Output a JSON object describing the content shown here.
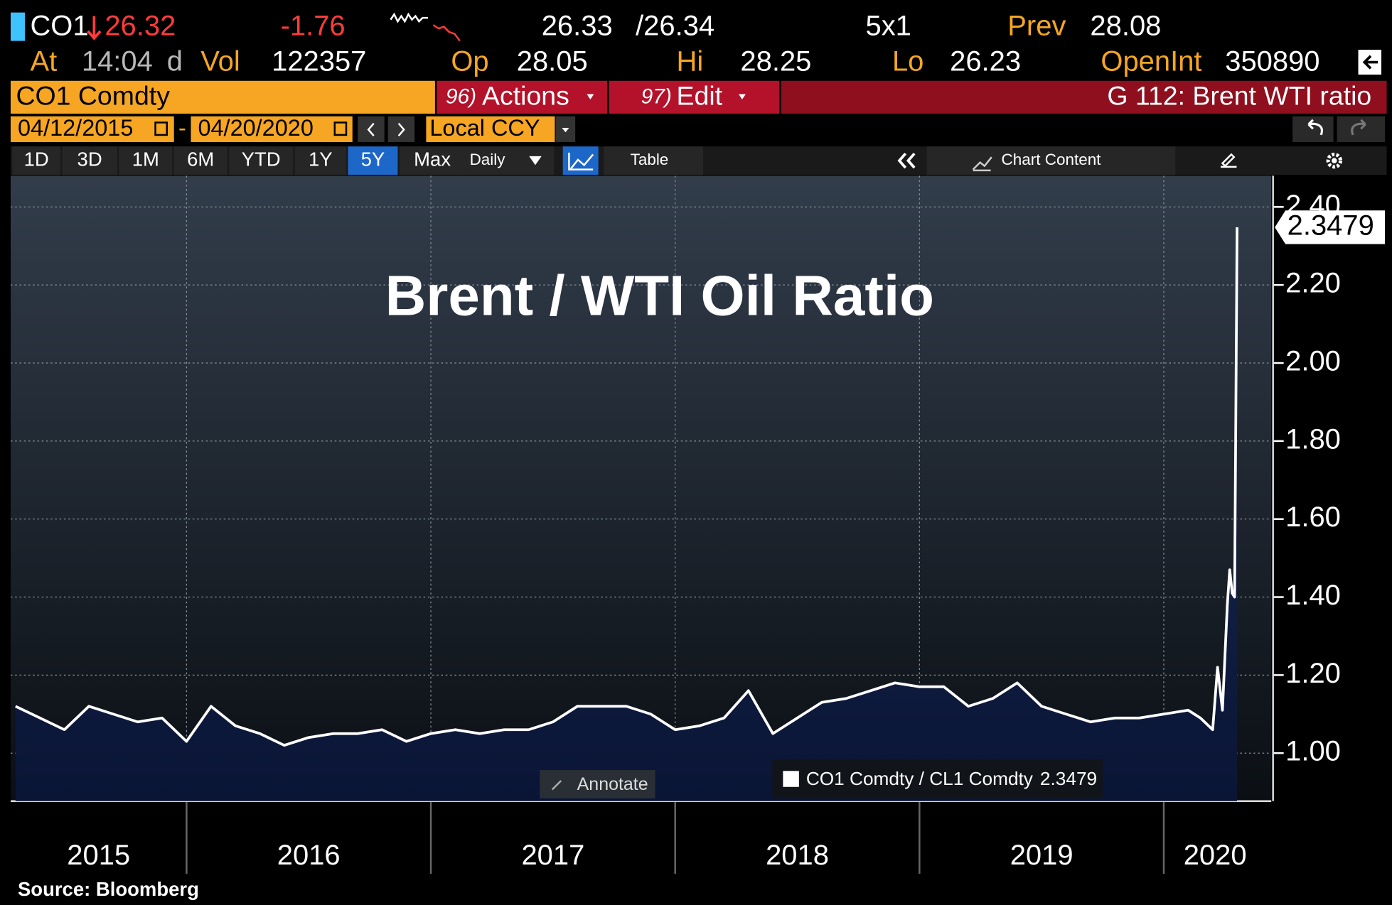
{
  "quote": {
    "ticker": "CO1",
    "last": "26.32",
    "change": "-1.76",
    "bid": "26.33",
    "ask": "/26.34",
    "size": "5x1",
    "prev_label": "Prev",
    "prev": "28.08",
    "time_label": "At",
    "time": "14:04",
    "time_suffix": "d",
    "vol_label": "Vol",
    "vol": "122357",
    "open_label": "Op",
    "open": "28.05",
    "high_label": "Hi",
    "high": "28.25",
    "low_label": "Lo",
    "low": "26.23",
    "oi_label": "OpenInt",
    "oi": "350890"
  },
  "toolbar": {
    "security": "CO1 Comdty",
    "menus": [
      {
        "num": "96)",
        "label": "Actions"
      },
      {
        "num": "97)",
        "label": "Edit"
      }
    ],
    "function": "G 112: Brent WTI ratio",
    "start_date": "04/12/2015",
    "date_sep": "-",
    "end_date": "04/20/2020",
    "currency": "Local CCY",
    "periods": [
      "1D",
      "3D",
      "1M",
      "6M",
      "YTD",
      "1Y",
      "5Y",
      "Max"
    ],
    "frequency": "Daily",
    "table": "Table",
    "chart_content": "Chart Content",
    "annotate": "Annotate"
  },
  "chart_data": {
    "type": "line",
    "title": "Brent / WTI Oil Ratio",
    "source": "Source: Bloomberg",
    "x": [
      2015.3,
      2015.4,
      2015.5,
      2015.6,
      2015.7,
      2015.8,
      2015.9,
      2016.0,
      2016.1,
      2016.2,
      2016.3,
      2016.4,
      2016.5,
      2016.6,
      2016.7,
      2016.8,
      2016.9,
      2017.0,
      2017.1,
      2017.2,
      2017.3,
      2017.4,
      2017.5,
      2017.6,
      2017.7,
      2017.8,
      2017.9,
      2018.0,
      2018.1,
      2018.2,
      2018.3,
      2018.4,
      2018.5,
      2018.6,
      2018.7,
      2018.8,
      2018.9,
      2019.0,
      2019.1,
      2019.2,
      2019.3,
      2019.4,
      2019.5,
      2019.6,
      2019.7,
      2019.8,
      2019.9,
      2020.0,
      2020.1,
      2020.15,
      2020.2,
      2020.22,
      2020.24,
      2020.26,
      2020.27,
      2020.28,
      2020.29,
      2020.3
    ],
    "series": [
      {
        "name": "CO1 Comdty / CL1 Comdty",
        "color": "#ffffff",
        "values": [
          1.12,
          1.09,
          1.06,
          1.12,
          1.1,
          1.08,
          1.09,
          1.03,
          1.12,
          1.07,
          1.05,
          1.02,
          1.04,
          1.05,
          1.05,
          1.06,
          1.03,
          1.05,
          1.06,
          1.05,
          1.06,
          1.06,
          1.08,
          1.12,
          1.12,
          1.12,
          1.1,
          1.06,
          1.07,
          1.09,
          1.16,
          1.05,
          1.09,
          1.13,
          1.14,
          1.16,
          1.18,
          1.17,
          1.17,
          1.12,
          1.14,
          1.18,
          1.12,
          1.1,
          1.08,
          1.09,
          1.09,
          1.1,
          1.11,
          1.09,
          1.06,
          1.22,
          1.11,
          1.38,
          1.47,
          1.41,
          1.4,
          2.3479
        ]
      }
    ],
    "last_value_label": "2.3479",
    "xlim": [
      2015.28,
      2020.44
    ],
    "xticks": [
      2016,
      2017,
      2018,
      2019,
      2020
    ],
    "year_labels": [
      {
        "value": 2015.64,
        "label": "2015"
      },
      {
        "value": 2016.5,
        "label": "2016"
      },
      {
        "value": 2017.5,
        "label": "2017"
      },
      {
        "value": 2018.5,
        "label": "2018"
      },
      {
        "value": 2019.5,
        "label": "2019"
      },
      {
        "value": 2020.21,
        "label": "2020"
      }
    ],
    "ylim": [
      0.877,
      2.48
    ],
    "yticks": [
      {
        "value": 1.0,
        "label": "1.00"
      },
      {
        "value": 1.2,
        "label": "1.20"
      },
      {
        "value": 1.4,
        "label": "1.40"
      },
      {
        "value": 1.6,
        "label": "1.60"
      },
      {
        "value": 1.8,
        "label": "1.80"
      },
      {
        "value": 2.0,
        "label": "2.00"
      },
      {
        "value": 2.2,
        "label": "2.20"
      },
      {
        "value": 2.4,
        "label": "2.40"
      }
    ],
    "grid": true
  }
}
